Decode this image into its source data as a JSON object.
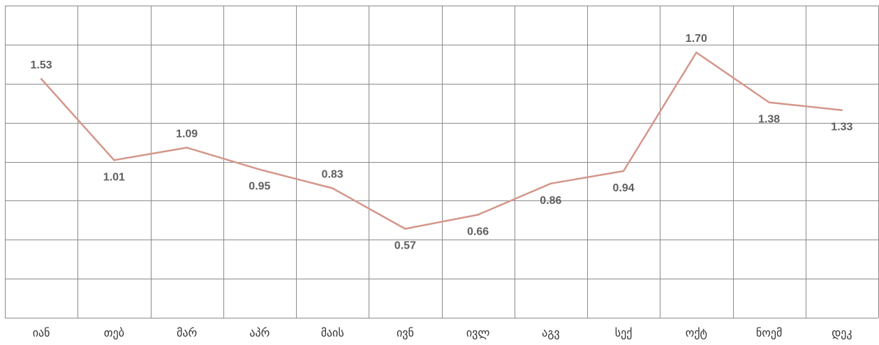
{
  "chart_data": {
    "type": "line",
    "title": "",
    "xlabel": "",
    "ylabel": "",
    "categories": [
      "იან",
      "თებ",
      "მარ",
      "აპრ",
      "მაის",
      "ივნ",
      "ივლ",
      "აგვ",
      "სექ",
      "ოქტ",
      "ნოემ",
      "დეკ"
    ],
    "series": [
      {
        "values": [
          1.53,
          1.01,
          1.09,
          0.95,
          0.83,
          0.57,
          0.66,
          0.86,
          0.94,
          1.7,
          1.38,
          1.33
        ],
        "labels": [
          "1.53",
          "1.01",
          "1.09",
          "0.95",
          "0.83",
          "0.57",
          "0.66",
          "0.86",
          "0.94",
          "1.70",
          "1.38",
          "1.33"
        ],
        "label_side": [
          "above",
          "below",
          "above",
          "below",
          "above",
          "below",
          "below",
          "below",
          "below",
          "above",
          "below",
          "below"
        ]
      }
    ],
    "ylim": [
      0,
      2.0
    ],
    "grid": true,
    "legend": "none",
    "y_ticks_visible": false
  },
  "colors": {
    "line": "#d4968a",
    "grid": "#8a8a8a",
    "label": "#606060",
    "tick": "#333333"
  }
}
